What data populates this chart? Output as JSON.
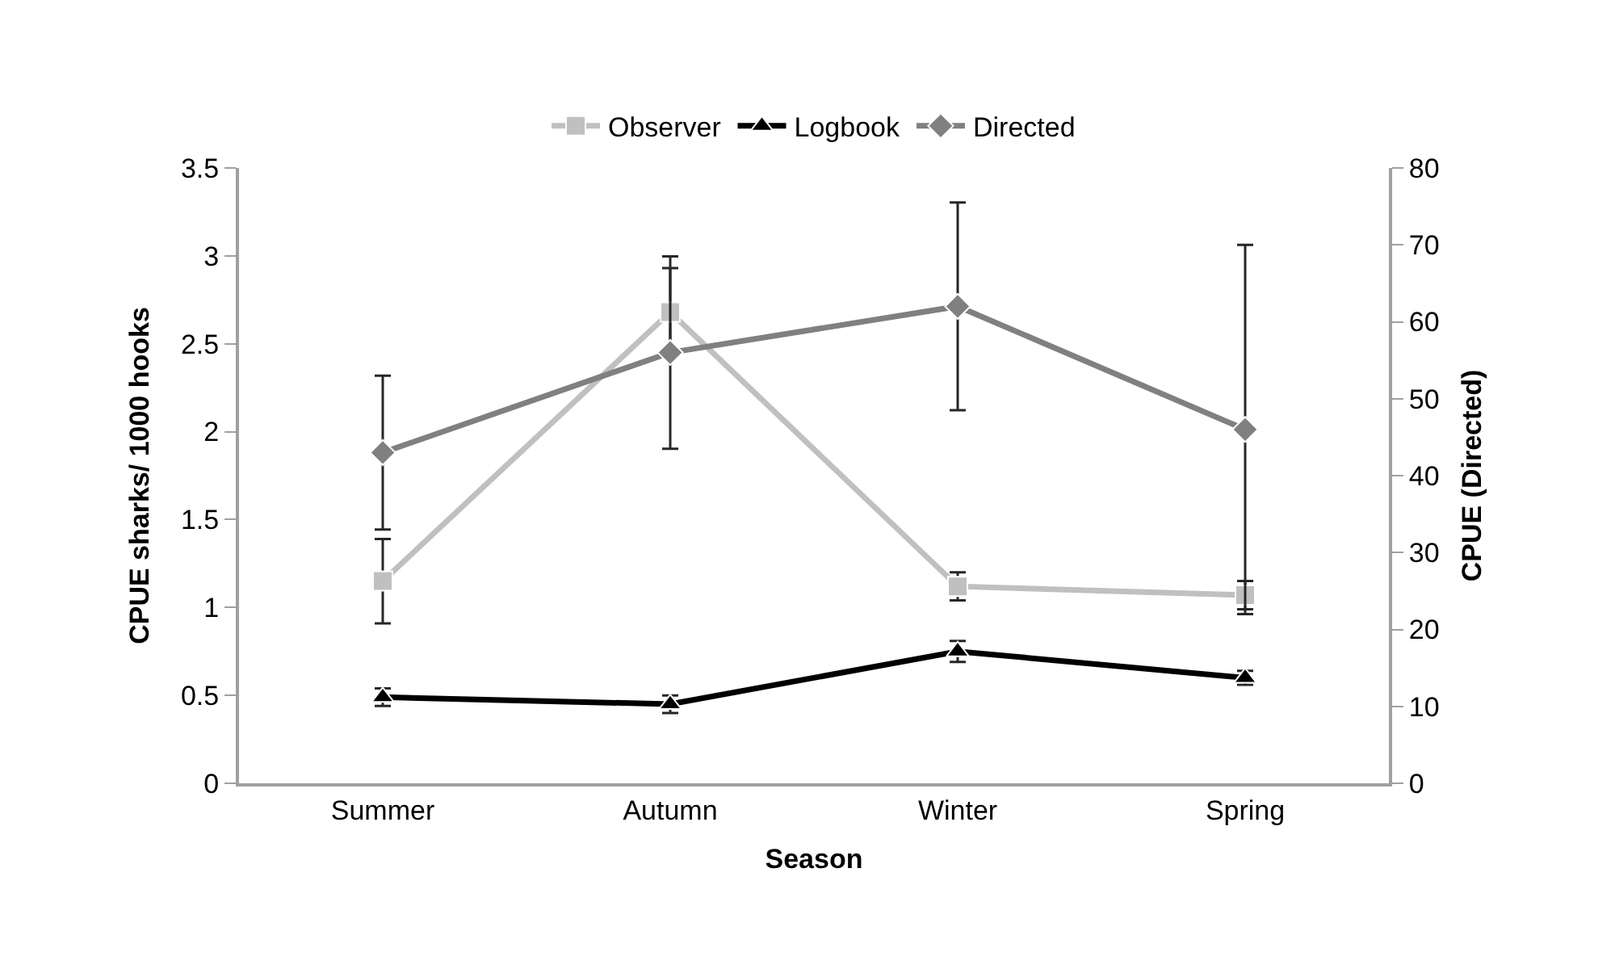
{
  "chart_data": {
    "type": "line",
    "xlabel": "Season",
    "ylabel": "CPUE sharks/ 1000 hooks",
    "y2label": "CPUE (Directed)",
    "categories": [
      "Summer",
      "Autumn",
      "Winter",
      "Spring"
    ],
    "series": [
      {
        "name": "Observer",
        "color": "#c0c0c0",
        "marker": "square",
        "values": [
          1.15,
          2.68,
          1.12,
          1.07
        ],
        "errors": [
          0.24,
          0.25,
          0.08,
          0.08
        ]
      },
      {
        "name": "Logbook",
        "color": "#000000",
        "marker": "triangle",
        "values": [
          0.49,
          0.45,
          0.75,
          0.6
        ],
        "errors": [
          0.05,
          0.05,
          0.06,
          0.04
        ]
      },
      {
        "name": "Directed",
        "color": "#808080",
        "marker": "diamond",
        "axis": "y2",
        "values": [
          43,
          56,
          62,
          46
        ],
        "errors": [
          10,
          12.5,
          13.5,
          24
        ]
      }
    ],
    "ylim": [
      0,
      3.5
    ],
    "yticks": [
      0,
      0.5,
      1,
      1.5,
      2,
      2.5,
      3,
      3.5
    ],
    "y2lim": [
      0,
      80
    ],
    "y2ticks": [
      0,
      10,
      20,
      30,
      40,
      50,
      60,
      70,
      80
    ],
    "grid": false,
    "legend": "top"
  }
}
